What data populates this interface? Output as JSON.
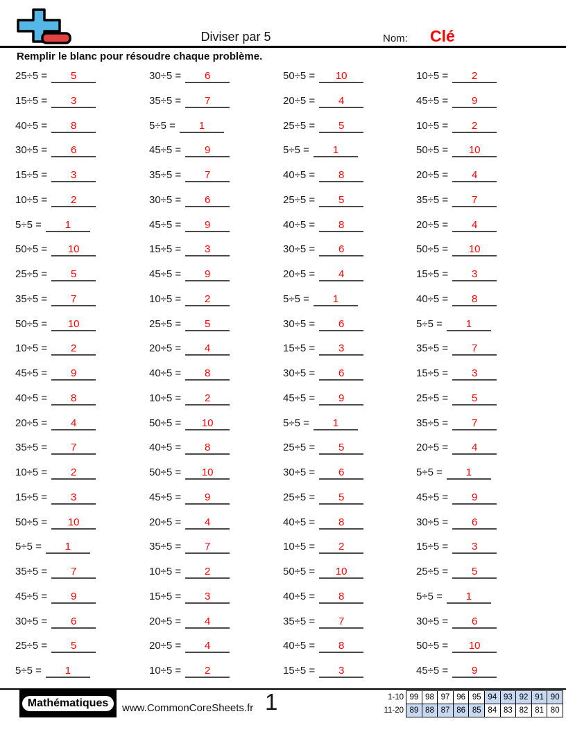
{
  "header": {
    "title": "Diviser par 5",
    "name_label": "Nom:",
    "name_value": "Clé"
  },
  "instruction": "Remplir le blanc pour résoudre chaque problème.",
  "problems": [
    {
      "e": "25÷5 =",
      "a": "5"
    },
    {
      "e": "30÷5 =",
      "a": "6"
    },
    {
      "e": "50÷5 =",
      "a": "10"
    },
    {
      "e": "10÷5 =",
      "a": "2"
    },
    {
      "e": "15÷5 =",
      "a": "3"
    },
    {
      "e": "35÷5 =",
      "a": "7"
    },
    {
      "e": "20÷5 =",
      "a": "4"
    },
    {
      "e": "45÷5 =",
      "a": "9"
    },
    {
      "e": "40÷5 =",
      "a": "8"
    },
    {
      "e": "5÷5 =",
      "a": "1"
    },
    {
      "e": "25÷5 =",
      "a": "5"
    },
    {
      "e": "10÷5 =",
      "a": "2"
    },
    {
      "e": "30÷5 =",
      "a": "6"
    },
    {
      "e": "45÷5 =",
      "a": "9"
    },
    {
      "e": "5÷5 =",
      "a": "1"
    },
    {
      "e": "50÷5 =",
      "a": "10"
    },
    {
      "e": "15÷5 =",
      "a": "3"
    },
    {
      "e": "35÷5 =",
      "a": "7"
    },
    {
      "e": "40÷5 =",
      "a": "8"
    },
    {
      "e": "20÷5 =",
      "a": "4"
    },
    {
      "e": "10÷5 =",
      "a": "2"
    },
    {
      "e": "30÷5 =",
      "a": "6"
    },
    {
      "e": "25÷5 =",
      "a": "5"
    },
    {
      "e": "35÷5 =",
      "a": "7"
    },
    {
      "e": "5÷5 =",
      "a": "1"
    },
    {
      "e": "45÷5 =",
      "a": "9"
    },
    {
      "e": "40÷5 =",
      "a": "8"
    },
    {
      "e": "20÷5 =",
      "a": "4"
    },
    {
      "e": "50÷5 =",
      "a": "10"
    },
    {
      "e": "15÷5 =",
      "a": "3"
    },
    {
      "e": "30÷5 =",
      "a": "6"
    },
    {
      "e": "50÷5 =",
      "a": "10"
    },
    {
      "e": "25÷5 =",
      "a": "5"
    },
    {
      "e": "45÷5 =",
      "a": "9"
    },
    {
      "e": "20÷5 =",
      "a": "4"
    },
    {
      "e": "15÷5 =",
      "a": "3"
    },
    {
      "e": "35÷5 =",
      "a": "7"
    },
    {
      "e": "10÷5 =",
      "a": "2"
    },
    {
      "e": "5÷5 =",
      "a": "1"
    },
    {
      "e": "40÷5 =",
      "a": "8"
    },
    {
      "e": "50÷5 =",
      "a": "10"
    },
    {
      "e": "25÷5 =",
      "a": "5"
    },
    {
      "e": "30÷5 =",
      "a": "6"
    },
    {
      "e": "5÷5 =",
      "a": "1"
    },
    {
      "e": "10÷5 =",
      "a": "2"
    },
    {
      "e": "20÷5 =",
      "a": "4"
    },
    {
      "e": "15÷5 =",
      "a": "3"
    },
    {
      "e": "35÷5 =",
      "a": "7"
    },
    {
      "e": "45÷5 =",
      "a": "9"
    },
    {
      "e": "40÷5 =",
      "a": "8"
    },
    {
      "e": "30÷5 =",
      "a": "6"
    },
    {
      "e": "15÷5 =",
      "a": "3"
    },
    {
      "e": "40÷5 =",
      "a": "8"
    },
    {
      "e": "10÷5 =",
      "a": "2"
    },
    {
      "e": "45÷5 =",
      "a": "9"
    },
    {
      "e": "25÷5 =",
      "a": "5"
    },
    {
      "e": "20÷5 =",
      "a": "4"
    },
    {
      "e": "50÷5 =",
      "a": "10"
    },
    {
      "e": "5÷5 =",
      "a": "1"
    },
    {
      "e": "35÷5 =",
      "a": "7"
    },
    {
      "e": "35÷5 =",
      "a": "7"
    },
    {
      "e": "40÷5 =",
      "a": "8"
    },
    {
      "e": "25÷5 =",
      "a": "5"
    },
    {
      "e": "20÷5 =",
      "a": "4"
    },
    {
      "e": "10÷5 =",
      "a": "2"
    },
    {
      "e": "50÷5 =",
      "a": "10"
    },
    {
      "e": "30÷5 =",
      "a": "6"
    },
    {
      "e": "5÷5 =",
      "a": "1"
    },
    {
      "e": "15÷5 =",
      "a": "3"
    },
    {
      "e": "45÷5 =",
      "a": "9"
    },
    {
      "e": "25÷5 =",
      "a": "5"
    },
    {
      "e": "45÷5 =",
      "a": "9"
    },
    {
      "e": "50÷5 =",
      "a": "10"
    },
    {
      "e": "20÷5 =",
      "a": "4"
    },
    {
      "e": "40÷5 =",
      "a": "8"
    },
    {
      "e": "30÷5 =",
      "a": "6"
    },
    {
      "e": "5÷5 =",
      "a": "1"
    },
    {
      "e": "35÷5 =",
      "a": "7"
    },
    {
      "e": "10÷5 =",
      "a": "2"
    },
    {
      "e": "15÷5 =",
      "a": "3"
    },
    {
      "e": "35÷5 =",
      "a": "7"
    },
    {
      "e": "10÷5 =",
      "a": "2"
    },
    {
      "e": "50÷5 =",
      "a": "10"
    },
    {
      "e": "25÷5 =",
      "a": "5"
    },
    {
      "e": "45÷5 =",
      "a": "9"
    },
    {
      "e": "15÷5 =",
      "a": "3"
    },
    {
      "e": "40÷5 =",
      "a": "8"
    },
    {
      "e": "5÷5 =",
      "a": "1"
    },
    {
      "e": "30÷5 =",
      "a": "6"
    },
    {
      "e": "20÷5 =",
      "a": "4"
    },
    {
      "e": "35÷5 =",
      "a": "7"
    },
    {
      "e": "30÷5 =",
      "a": "6"
    },
    {
      "e": "25÷5 =",
      "a": "5"
    },
    {
      "e": "20÷5 =",
      "a": "4"
    },
    {
      "e": "40÷5 =",
      "a": "8"
    },
    {
      "e": "50÷5 =",
      "a": "10"
    },
    {
      "e": "5÷5 =",
      "a": "1"
    },
    {
      "e": "10÷5 =",
      "a": "2"
    },
    {
      "e": "15÷5 =",
      "a": "3"
    },
    {
      "e": "45÷5 =",
      "a": "9"
    }
  ],
  "footer": {
    "brand": "Mathématiques",
    "site": "www.CommonCoreSheets.fr",
    "page_number": "1",
    "score_table": {
      "row_labels": [
        "1-10",
        "11-20"
      ],
      "rows": [
        {
          "values": [
            "99",
            "98",
            "97",
            "96",
            "95",
            "94",
            "93",
            "92",
            "91",
            "90"
          ],
          "highlighted": [
            false,
            false,
            false,
            false,
            false,
            true,
            true,
            true,
            true,
            true
          ]
        },
        {
          "values": [
            "89",
            "88",
            "87",
            "86",
            "85",
            "84",
            "83",
            "82",
            "81",
            "80"
          ],
          "highlighted": [
            true,
            true,
            true,
            true,
            true,
            false,
            false,
            false,
            false,
            false
          ]
        }
      ]
    }
  },
  "colors": {
    "answer_red": "#fe0000",
    "underline_gray": "#4a4a4a",
    "score_highlight": "#c6d9f1",
    "logo_blue": "#55b7e8",
    "logo_red": "#e04343"
  }
}
